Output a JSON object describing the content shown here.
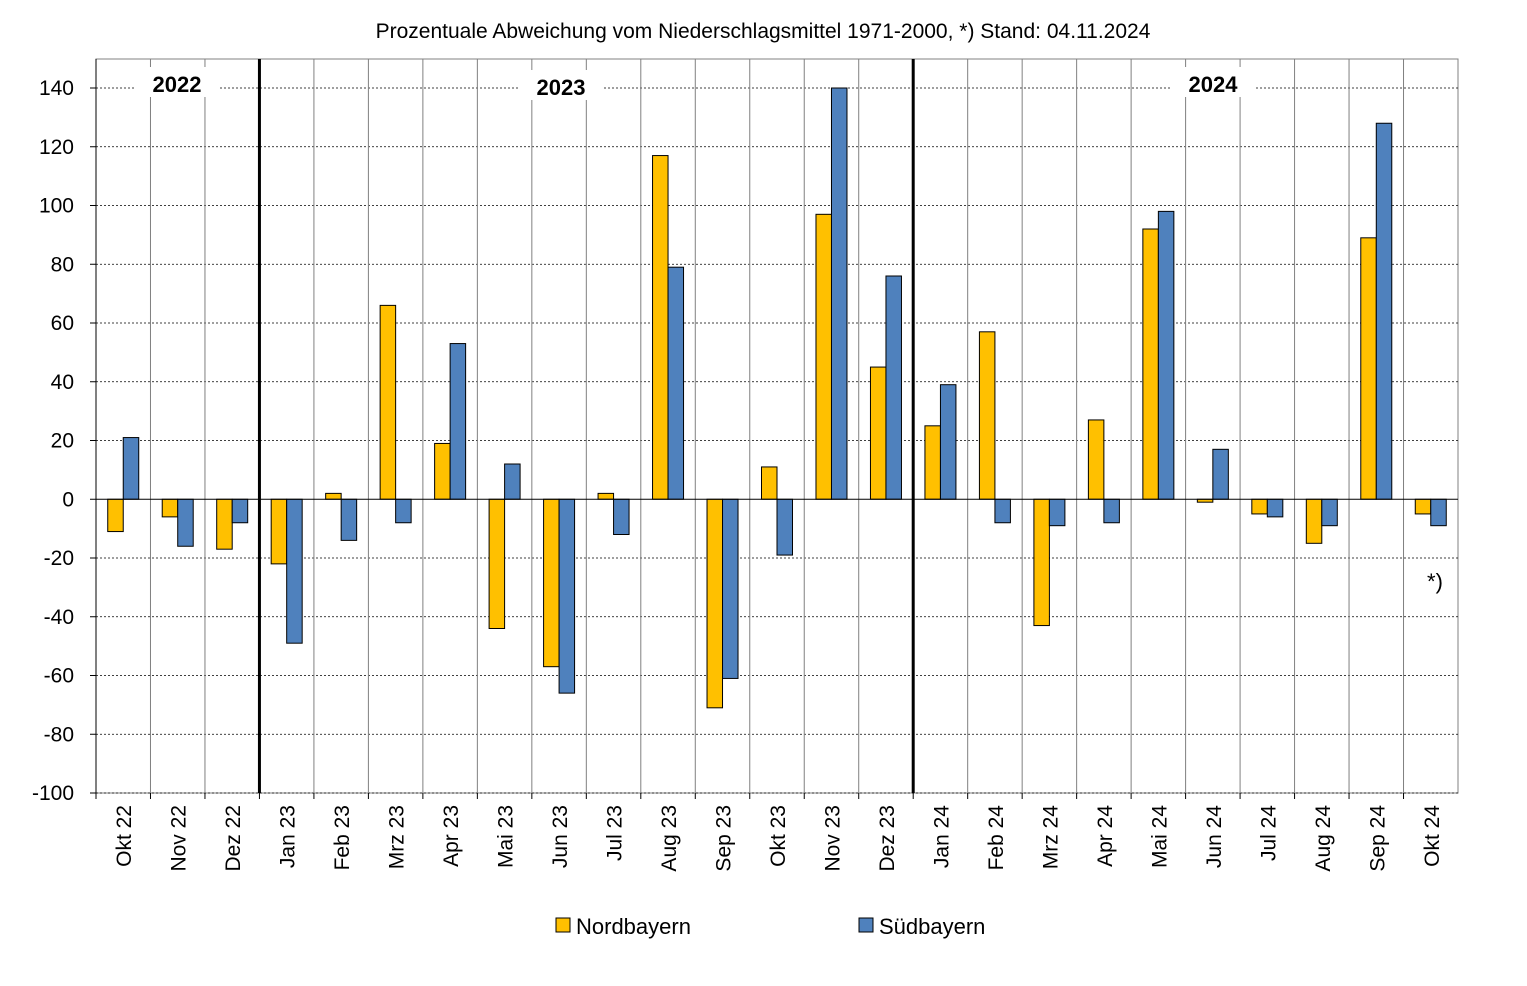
{
  "chart_data": {
    "type": "bar",
    "title": "Prozentuale Abweichung vom Niederschlagsmittel 1971-2000,  *) Stand:  04.11.2024",
    "xlabel": "",
    "ylabel": "",
    "ylim": [
      -100,
      140
    ],
    "yticks": [
      -100,
      -80,
      -60,
      -40,
      -20,
      0,
      20,
      40,
      60,
      80,
      100,
      120,
      140
    ],
    "grid": true,
    "legend_position": "bottom",
    "categories": [
      "Okt 22",
      "Nov 22",
      "Dez 22",
      "Jan 23",
      "Feb 23",
      "Mrz 23",
      "Apr 23",
      "Mai 23",
      "Jun 23",
      "Jul 23",
      "Aug 23",
      "Sep 23",
      "Okt 23",
      "Nov 23",
      "Dez 23",
      "Jan 24",
      "Feb 24",
      "Mrz 24",
      "Apr 24",
      "Mai 24",
      "Jun 24",
      "Jul 24",
      "Aug 24",
      "Sep 24",
      "Okt 24"
    ],
    "series": [
      {
        "name": "Nordbayern",
        "color": "#FFC000",
        "values": [
          -11,
          -6,
          -17,
          -22,
          2,
          66,
          19,
          -44,
          -57,
          2,
          117,
          -71,
          11,
          97,
          45,
          25,
          57,
          -43,
          27,
          92,
          -1,
          -5,
          -15,
          89,
          -5
        ]
      },
      {
        "name": "Südbayern",
        "color": "#4F81BD",
        "values": [
          21,
          -16,
          -8,
          -49,
          -14,
          -8,
          53,
          12,
          -66,
          -12,
          79,
          -61,
          -19,
          140,
          76,
          39,
          -8,
          -9,
          -8,
          98,
          17,
          -6,
          -9,
          128,
          -9
        ]
      }
    ],
    "year_labels": [
      {
        "text": "2022",
        "start_index": 0,
        "end_index": 2
      },
      {
        "text": "2023",
        "start_index": 3,
        "end_index": 14
      },
      {
        "text": "2024",
        "start_index": 15,
        "end_index": 24
      }
    ],
    "year_separators_after_index": [
      2,
      14
    ],
    "annotation": "*)"
  }
}
